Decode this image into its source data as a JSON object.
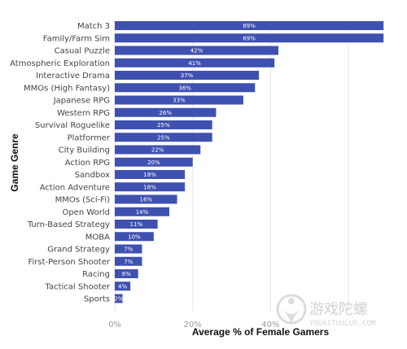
{
  "chart_data": {
    "type": "bar",
    "orientation": "horizontal",
    "categories": [
      "Match 3",
      "Family/Farm Sim",
      "Casual Puzzle",
      "Atmospheric Exploration",
      "Interactive Drama",
      "MMOs (High Fantasy)",
      "Japanese RPG",
      "Western RPG",
      "Survival Roguelike",
      "Platformer",
      "City Building",
      "Action RPG",
      "Sandbox",
      "Action Adventure",
      "MMOs (Sci-Fi)",
      "Open World",
      "Turn-Based Strategy",
      "MOBA",
      "Grand Strategy",
      "First-Person Shooter",
      "Racing",
      "Tactical Shooter",
      "Sports"
    ],
    "values": [
      69,
      69,
      42,
      41,
      37,
      36,
      33,
      26,
      25,
      25,
      22,
      20,
      18,
      18,
      16,
      14,
      11,
      10,
      7,
      7,
      6,
      4,
      2
    ],
    "value_labels": [
      "69%",
      "69%",
      "42%",
      "41%",
      "37%",
      "36%",
      "33%",
      "26%",
      "25%",
      "25%",
      "22%",
      "20%",
      "18%",
      "18%",
      "16%",
      "14%",
      "11%",
      "10%",
      "7%",
      "7%",
      "6%",
      "4%",
      "2%"
    ],
    "xlabel": "Average % of Female Gamers",
    "ylabel": "Game Genre",
    "xlim": [
      0,
      70
    ],
    "xticks": [
      0,
      20,
      40
    ],
    "xtick_labels": [
      "0%",
      "20%",
      "40%"
    ],
    "grid": true,
    "colors": {
      "bar": "#3f51b0",
      "grid": "#e6e6e6"
    }
  },
  "watermark": {
    "text": "游戏陀螺",
    "sub": "YOUXITUOLUO.COM",
    "icon": "spinning-top-logo-icon"
  }
}
